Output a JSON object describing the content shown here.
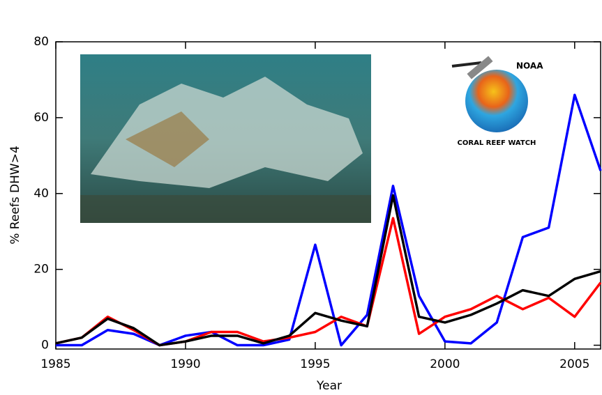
{
  "chart_data": {
    "type": "line",
    "x_label": "Year",
    "y_label": "% Reefs DHW>4",
    "x": [
      1985,
      1986,
      1987,
      1988,
      1989,
      1990,
      1991,
      1992,
      1993,
      1994,
      1995,
      1996,
      1997,
      1998,
      1999,
      2000,
      2001,
      2002,
      2003,
      2004,
      2005,
      2006
    ],
    "series": [
      {
        "color": "#0000ff",
        "values": [
          0,
          0,
          4,
          3,
          0,
          2.5,
          3.5,
          0,
          0,
          1.5,
          26.5,
          0,
          8,
          42,
          13,
          1,
          0.5,
          6,
          28.5,
          31,
          66,
          46
        ]
      },
      {
        "color": "#ff0000",
        "values": [
          0.5,
          2,
          7.5,
          4,
          0,
          1,
          3.5,
          3.5,
          1,
          2,
          3.5,
          7.5,
          5,
          33.5,
          3,
          7.5,
          9.5,
          13,
          9.5,
          12.5,
          7.5,
          16.5
        ]
      },
      {
        "color": "#000000",
        "values": [
          0.5,
          2,
          7,
          4.5,
          0,
          1,
          2.5,
          2.5,
          0.5,
          2.5,
          8.5,
          6.5,
          5,
          39.5,
          7.5,
          6,
          8,
          11,
          14.5,
          13,
          17.5,
          19.5
        ]
      }
    ],
    "xlim": [
      1985,
      2006
    ],
    "ylim": [
      -1,
      80
    ],
    "xticks": [
      1985,
      1990,
      1995,
      2000,
      2005
    ],
    "yticks": [
      0,
      20,
      40,
      60,
      80
    ]
  },
  "logo": {
    "top": "NOAA",
    "bottom": "CORAL REEF WATCH"
  }
}
